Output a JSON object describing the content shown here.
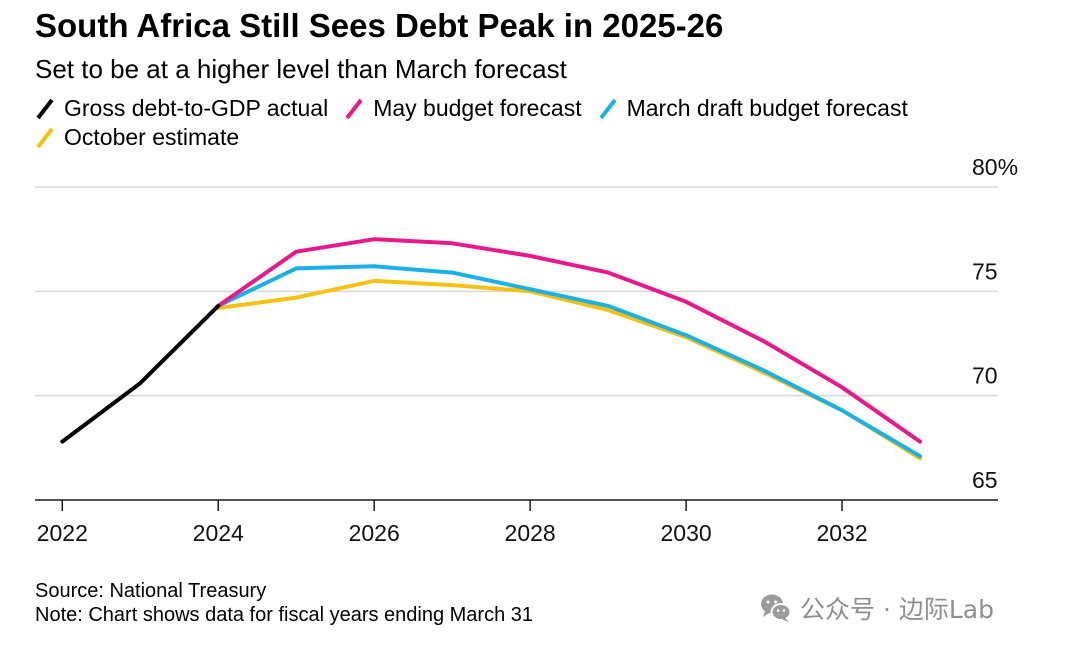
{
  "chart_data": {
    "type": "line",
    "title": "South Africa Still Sees Debt Peak in 2025-26",
    "subtitle": "Set to be at a higher level than March forecast",
    "xlabel": "",
    "ylabel": "",
    "xlim": [
      2021.65,
      2034
    ],
    "ylim": [
      65,
      80
    ],
    "grid": true,
    "legend_position": "top-left",
    "y_axis_position": "right",
    "x_ticks": [
      {
        "value": 2022,
        "label": "2022"
      },
      {
        "value": 2024,
        "label": "2024"
      },
      {
        "value": 2026,
        "label": "2026"
      },
      {
        "value": 2028,
        "label": "2028"
      },
      {
        "value": 2030,
        "label": "2030"
      },
      {
        "value": 2032,
        "label": "2032"
      }
    ],
    "y_ticks": [
      {
        "value": 80,
        "label": "80%"
      },
      {
        "value": 75,
        "label": "75"
      },
      {
        "value": 70,
        "label": "70"
      },
      {
        "value": 65,
        "label": "65"
      }
    ],
    "series": [
      {
        "name": "Gross debt-to-GDP actual",
        "color": "#000000",
        "x": [
          2022,
          2023,
          2024
        ],
        "y": [
          67.8,
          70.6,
          74.3
        ]
      },
      {
        "name": "May budget forecast",
        "color": "#e8198b",
        "x": [
          2024,
          2025,
          2026,
          2027,
          2028,
          2029,
          2030,
          2031,
          2032,
          2033
        ],
        "y": [
          74.3,
          76.9,
          77.5,
          77.3,
          76.7,
          75.9,
          74.5,
          72.6,
          70.4,
          67.8
        ]
      },
      {
        "name": "March draft budget forecast",
        "color": "#1bb0e8",
        "x": [
          2024,
          2025,
          2026,
          2027,
          2028,
          2029,
          2030,
          2031,
          2032,
          2033
        ],
        "y": [
          74.3,
          76.1,
          76.2,
          75.9,
          75.1,
          74.3,
          72.9,
          71.2,
          69.3,
          67.1
        ]
      },
      {
        "name": "October estimate",
        "color": "#f5c211",
        "x": [
          2024,
          2025,
          2026,
          2027,
          2028,
          2029,
          2030,
          2031,
          2032,
          2033
        ],
        "y": [
          74.2,
          74.7,
          75.5,
          75.3,
          75.0,
          74.1,
          72.8,
          71.1,
          69.3,
          67.0
        ]
      }
    ]
  },
  "footer": {
    "source": "Source: National Treasury",
    "note": "Note: Chart shows data for fiscal years ending March 31"
  },
  "watermark": {
    "icon": "wechat-icon",
    "text": "公众号 · 边际Lab"
  }
}
